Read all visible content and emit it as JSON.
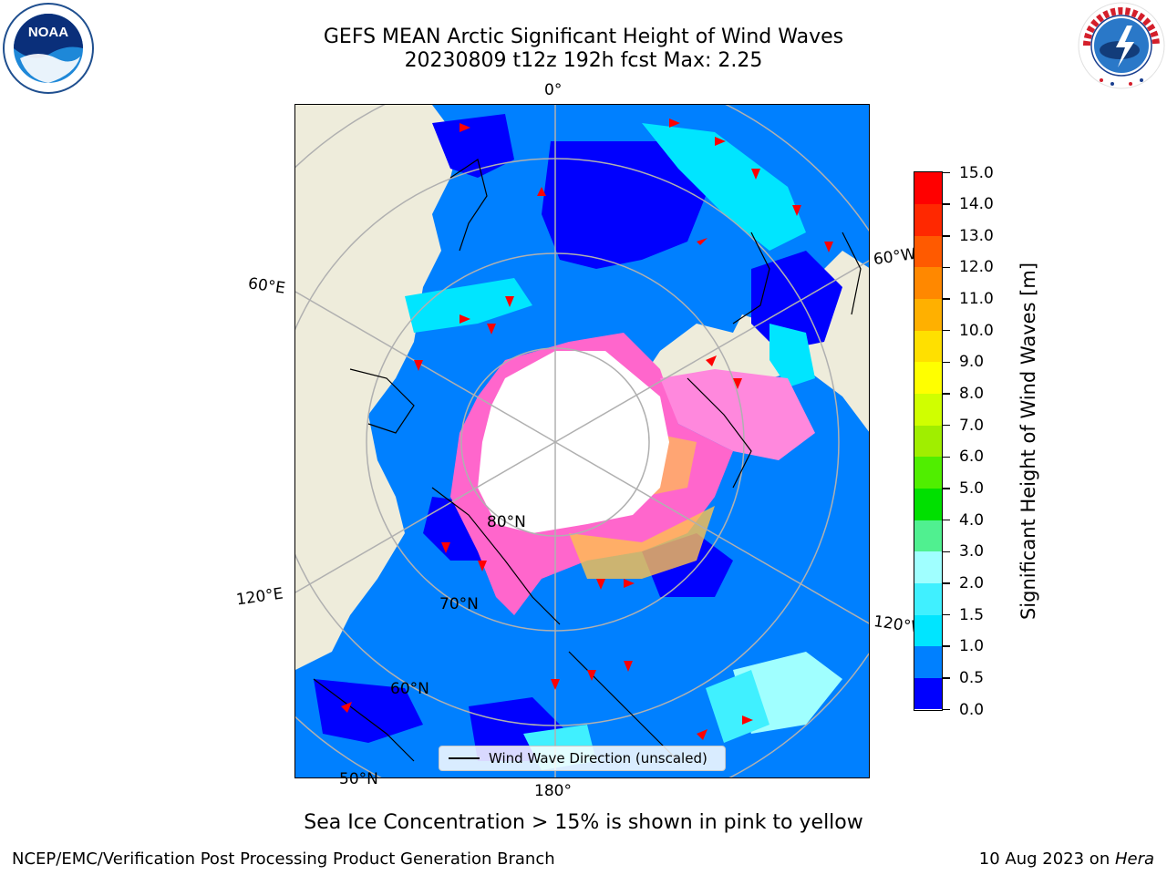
{
  "title": {
    "line1": "GEFS MEAN Arctic Significant Height of Wind Waves",
    "line2": "20230809 t12z 192h fcst   Max: 2.25"
  },
  "map_labels": {
    "lon_0": "0°",
    "lon_60e": "60°E",
    "lon_60w": "60°W",
    "lon_120e": "120°E",
    "lon_120w": "120°W",
    "lon_180": "180°",
    "lat_80": "80°N",
    "lat_70": "70°N",
    "lat_60": "60°N",
    "lat_50": "50°N"
  },
  "legend": {
    "label": "Wind Wave Direction (unscaled)"
  },
  "caption": "Sea Ice Concentration > 15% is shown in pink to yellow",
  "footer": {
    "left": "NCEP/EMC/Verification Post Processing Product Generation Branch",
    "right_prefix": "10 Aug 2023 on ",
    "right_host": "Hera"
  },
  "colorbar": {
    "title": "Significant Height of Wind Waves [m]",
    "ticks": [
      "0.0",
      "0.5",
      "1.0",
      "1.5",
      "2.0",
      "3.0",
      "4.0",
      "5.0",
      "6.0",
      "7.0",
      "8.0",
      "9.0",
      "10.0",
      "11.0",
      "12.0",
      "13.0",
      "14.0",
      "15.0"
    ],
    "colors": [
      "#0000fe",
      "#0080ff",
      "#00e5ff",
      "#40f0ff",
      "#a0ffff",
      "#50f090",
      "#00e000",
      "#50ee00",
      "#a0ee00",
      "#d0ff00",
      "#ffff00",
      "#ffe000",
      "#ffb000",
      "#ff8800",
      "#ff5a00",
      "#ff2800",
      "#ff0000"
    ]
  },
  "logos": {
    "left": "NOAA",
    "right_text": "NATIONAL WEATHER SERVICE"
  },
  "colors": {
    "land": "#eeecdb",
    "ocean_low": "#0000fe",
    "ocean_mid": "#0080ff",
    "ocean_high": "#00e5ff",
    "ice": "#ff66cc",
    "ice_edge": "#ffc04d",
    "arrows": "#ff0000"
  }
}
